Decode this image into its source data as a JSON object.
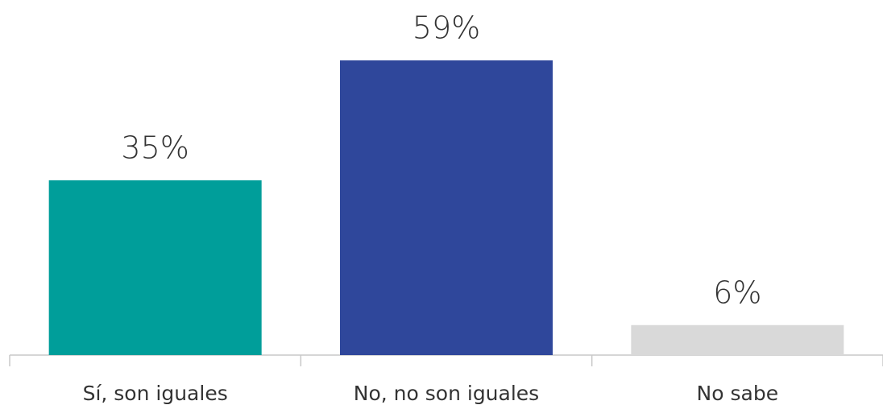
{
  "chart_data": {
    "type": "bar",
    "categories": [
      "Sí, son iguales",
      "No, no son iguales",
      "No sabe"
    ],
    "values": [
      35,
      59,
      6
    ],
    "value_labels": [
      "35%",
      "59%",
      "6%"
    ],
    "colors": [
      "#009e9a",
      "#2f479b",
      "#d9d9d9"
    ]
  }
}
